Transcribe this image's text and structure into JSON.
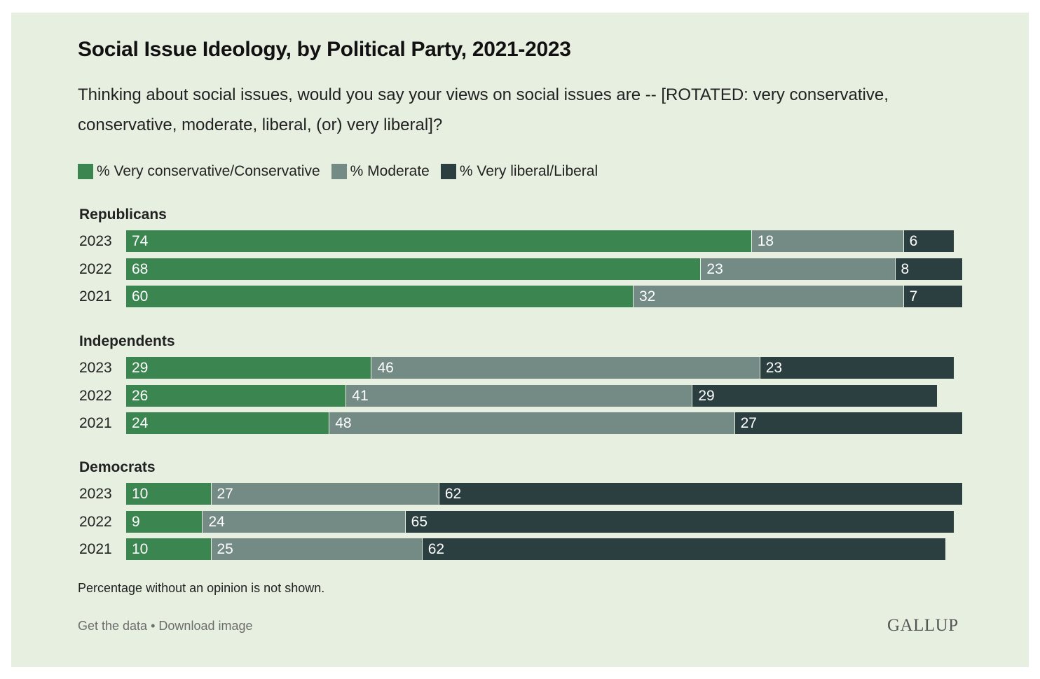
{
  "colors": {
    "background": "#e6efe0",
    "conservative": "#3a8550",
    "moderate": "#738b84",
    "liberal": "#2c3f40"
  },
  "footer": {
    "note": "Percentage without an opinion is not shown.",
    "get_data": "Get the data",
    "separator": "•",
    "download": "Download image",
    "brand": "GALLUP"
  },
  "chart_data": {
    "type": "bar",
    "orientation": "horizontal",
    "stacked": true,
    "title": "Social Issue Ideology, by Political Party, 2021-2023",
    "subtitle": "Thinking about social issues, would you say your views on social issues are -- [ROTATED: very conservative, conservative, moderate, liberal, (or) very liberal]?",
    "legend": [
      "% Very conservative/Conservative",
      "% Moderate",
      "% Very liberal/Liberal"
    ],
    "legend_position": "top-left",
    "grid": false,
    "xlim": [
      0,
      100
    ],
    "groups": [
      {
        "name": "Republicans",
        "rows": [
          {
            "year": "2023",
            "values": [
              74,
              18,
              6
            ]
          },
          {
            "year": "2022",
            "values": [
              68,
              23,
              8
            ]
          },
          {
            "year": "2021",
            "values": [
              60,
              32,
              7
            ]
          }
        ]
      },
      {
        "name": "Independents",
        "rows": [
          {
            "year": "2023",
            "values": [
              29,
              46,
              23
            ]
          },
          {
            "year": "2022",
            "values": [
              26,
              41,
              29
            ]
          },
          {
            "year": "2021",
            "values": [
              24,
              48,
              27
            ]
          }
        ]
      },
      {
        "name": "Democrats",
        "rows": [
          {
            "year": "2023",
            "values": [
              10,
              27,
              62
            ]
          },
          {
            "year": "2022",
            "values": [
              9,
              24,
              65
            ]
          },
          {
            "year": "2021",
            "values": [
              10,
              25,
              62
            ]
          }
        ]
      }
    ]
  }
}
